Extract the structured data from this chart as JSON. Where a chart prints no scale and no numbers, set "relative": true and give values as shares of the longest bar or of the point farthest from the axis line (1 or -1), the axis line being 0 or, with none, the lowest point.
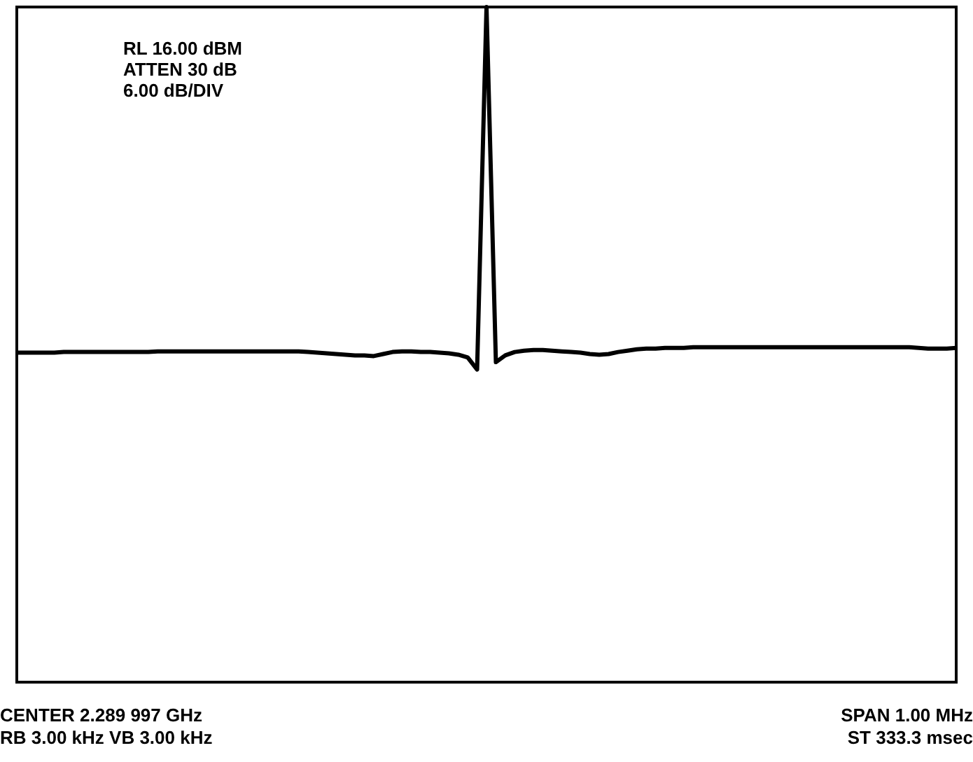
{
  "chart_data": {
    "type": "line",
    "relative": true,
    "grid": false,
    "legend": false,
    "tick_labels": false,
    "categories": [
      null,
      null,
      null,
      null,
      null,
      null,
      null,
      null,
      null,
      null,
      null,
      null,
      null,
      null,
      null,
      null,
      null,
      null,
      null,
      null,
      null,
      null,
      null,
      null,
      null,
      null,
      null,
      null,
      null,
      null,
      null,
      null,
      null,
      null,
      null,
      null,
      null,
      null,
      null,
      null,
      null,
      null,
      null,
      null,
      null,
      null,
      null,
      null,
      null,
      null,
      null,
      null,
      null,
      null,
      null,
      null,
      null,
      null,
      null,
      null,
      null,
      null,
      null,
      null,
      null,
      null,
      null,
      null,
      null,
      null,
      null,
      null,
      null,
      null,
      null,
      null,
      null,
      null,
      null,
      null,
      null,
      null,
      null,
      null,
      null,
      null,
      null,
      null,
      null,
      null,
      null,
      null,
      null,
      null,
      null,
      null,
      null,
      null,
      null,
      null,
      null
    ],
    "series": [
      {
        "color": "#000000",
        "values": [
          0.488,
          0.488,
          0.488,
          0.488,
          0.488,
          0.489,
          0.489,
          0.489,
          0.489,
          0.489,
          0.489,
          0.489,
          0.489,
          0.489,
          0.489,
          0.49,
          0.49,
          0.49,
          0.49,
          0.49,
          0.49,
          0.49,
          0.49,
          0.49,
          0.49,
          0.49,
          0.49,
          0.49,
          0.49,
          0.49,
          0.49,
          0.489,
          0.488,
          0.487,
          0.486,
          0.485,
          0.484,
          0.484,
          0.483,
          0.486,
          0.489,
          0.49,
          0.49,
          0.489,
          0.489,
          0.488,
          0.487,
          0.485,
          0.481,
          0.463,
          1,
          0.474,
          0.484,
          0.489,
          0.491,
          0.492,
          0.492,
          0.491,
          0.49,
          0.489,
          0.488,
          0.486,
          0.485,
          0.486,
          0.489,
          0.491,
          0.493,
          0.494,
          0.494,
          0.495,
          0.495,
          0.495,
          0.496,
          0.496,
          0.496,
          0.496,
          0.496,
          0.496,
          0.496,
          0.496,
          0.496,
          0.496,
          0.496,
          0.496,
          0.496,
          0.496,
          0.496,
          0.496,
          0.496,
          0.496,
          0.496,
          0.496,
          0.496,
          0.496,
          0.496,
          0.496,
          0.495,
          0.494,
          0.494,
          0.494,
          0.495
        ]
      }
    ],
    "annotations": [
      "RL 16.00 dBM",
      "ATTEN 30 dB",
      "6.00 dB/DIV",
      "CENTER 2.289 997 GHz",
      "RB 3.00 kHz VB 3.00 kHz",
      "SPAN 1.00 MHz",
      "ST 333.3 msec"
    ]
  }
}
